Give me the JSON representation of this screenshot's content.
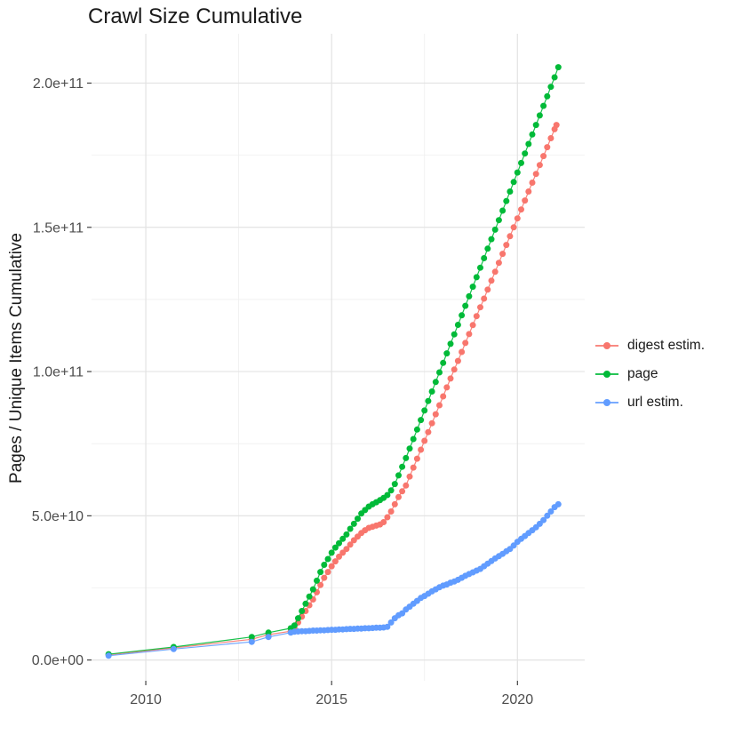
{
  "chart_data": {
    "type": "line",
    "title": "Crawl Size Cumulative",
    "xlabel": "",
    "ylabel": "Pages / Unique Items Cumulative",
    "grid": true,
    "grid_major_color": "#e3e3e3",
    "grid_minor_color": "#efefef",
    "tick_color": "#333333",
    "axis_text_color": "#4d4d4d",
    "legend_position": "right",
    "xlim": [
      2008.54,
      2021.81
    ],
    "ylim": [
      -7200000000.0,
      217100000000.0
    ],
    "x_ticks": {
      "major": [
        2010,
        2015,
        2020
      ],
      "minor": [
        2012.5,
        2017.5
      ],
      "labels": [
        "2010",
        "2015",
        "2020"
      ]
    },
    "y_ticks": {
      "major": [
        0,
        50000000000.0,
        100000000000.0,
        150000000000.0,
        200000000000.0
      ],
      "minor": [
        25000000000.0,
        75000000000.0,
        125000000000.0,
        175000000000.0
      ],
      "labels": [
        "0.0e+00",
        "5.0e+10",
        "1.0e+11",
        "1.5e+11",
        "2.0e+11"
      ]
    },
    "series": [
      {
        "name": "digest estim.",
        "color": "#F8766D",
        "points": [
          [
            2009.0,
            1800000000.0
          ],
          [
            2010.75,
            4200000000.0
          ],
          [
            2012.85,
            7200000000.0
          ],
          [
            2013.3,
            8800000000.0
          ],
          [
            2013.9,
            10000000000.0
          ],
          [
            2014.0,
            11000000000.0
          ],
          [
            2014.1,
            13000000000.0
          ],
          [
            2014.2,
            15000000000.0
          ],
          [
            2014.3,
            17000000000.0
          ],
          [
            2014.4,
            19000000000.0
          ],
          [
            2014.5,
            21000000000.0
          ],
          [
            2014.6,
            23500000000.0
          ],
          [
            2014.7,
            26000000000.0
          ],
          [
            2014.8,
            28500000000.0
          ],
          [
            2014.9,
            30500000000.0
          ],
          [
            2015.0,
            32500000000.0
          ],
          [
            2015.1,
            34200000000.0
          ],
          [
            2015.2,
            35800000000.0
          ],
          [
            2015.3,
            37200000000.0
          ],
          [
            2015.4,
            38500000000.0
          ],
          [
            2015.5,
            40000000000.0
          ],
          [
            2015.6,
            41500000000.0
          ],
          [
            2015.7,
            42800000000.0
          ],
          [
            2015.8,
            44000000000.0
          ],
          [
            2015.9,
            45000000000.0
          ],
          [
            2016.0,
            45800000000.0
          ],
          [
            2016.1,
            46200000000.0
          ],
          [
            2016.2,
            46600000000.0
          ],
          [
            2016.3,
            47000000000.0
          ],
          [
            2016.4,
            47800000000.0
          ],
          [
            2016.5,
            49500000000.0
          ],
          [
            2016.6,
            51500000000.0
          ],
          [
            2016.7,
            54000000000.0
          ],
          [
            2016.8,
            56500000000.0
          ],
          [
            2016.9,
            58500000000.0
          ],
          [
            2017.0,
            60500000000.0
          ],
          [
            2017.1,
            63600000000.0
          ],
          [
            2017.2,
            66700000000.0
          ],
          [
            2017.3,
            69800000000.0
          ],
          [
            2017.4,
            72900000000.0
          ],
          [
            2017.5,
            76000000000.0
          ],
          [
            2017.6,
            79000000000.0
          ],
          [
            2017.7,
            82100000000.0
          ],
          [
            2017.8,
            85200000000.0
          ],
          [
            2017.9,
            88300000000.0
          ],
          [
            2018.0,
            91400000000.0
          ],
          [
            2018.1,
            94500000000.0
          ],
          [
            2018.2,
            97600000000.0
          ],
          [
            2018.3,
            100700000000.0
          ],
          [
            2018.4,
            103700000000.0
          ],
          [
            2018.5,
            106800000000.0
          ],
          [
            2018.6,
            109900000000.0
          ],
          [
            2018.7,
            113000000000.0
          ],
          [
            2018.8,
            116100000000.0
          ],
          [
            2018.9,
            119200000000.0
          ],
          [
            2019.0,
            122300000000.0
          ],
          [
            2019.1,
            125300000000.0
          ],
          [
            2019.2,
            128400000000.0
          ],
          [
            2019.3,
            131500000000.0
          ],
          [
            2019.4,
            134600000000.0
          ],
          [
            2019.5,
            137700000000.0
          ],
          [
            2019.6,
            140800000000.0
          ],
          [
            2019.7,
            143900000000.0
          ],
          [
            2019.8,
            146900000000.0
          ],
          [
            2019.9,
            150000000000.0
          ],
          [
            2020.0,
            153100000000.0
          ],
          [
            2020.1,
            156200000000.0
          ],
          [
            2020.2,
            159300000000.0
          ],
          [
            2020.3,
            162400000000.0
          ],
          [
            2020.4,
            165500000000.0
          ],
          [
            2020.5,
            168500000000.0
          ],
          [
            2020.6,
            171600000000.0
          ],
          [
            2020.7,
            174700000000.0
          ],
          [
            2020.8,
            177800000000.0
          ],
          [
            2020.9,
            180900000000.0
          ],
          [
            2021.0,
            184000000000.0
          ],
          [
            2021.05,
            185500000000.0
          ]
        ]
      },
      {
        "name": "page",
        "color": "#00BA38",
        "points": [
          [
            2009.0,
            2000000000.0
          ],
          [
            2010.75,
            4500000000.0
          ],
          [
            2012.85,
            8000000000.0
          ],
          [
            2013.3,
            9500000000.0
          ],
          [
            2013.9,
            11000000000.0
          ],
          [
            2014.0,
            12000000000.0
          ],
          [
            2014.1,
            14500000000.0
          ],
          [
            2014.2,
            17000000000.0
          ],
          [
            2014.3,
            19500000000.0
          ],
          [
            2014.4,
            22000000000.0
          ],
          [
            2014.5,
            24500000000.0
          ],
          [
            2014.6,
            27500000000.0
          ],
          [
            2014.7,
            30500000000.0
          ],
          [
            2014.8,
            33000000000.0
          ],
          [
            2014.9,
            35000000000.0
          ],
          [
            2015.0,
            37200000000.0
          ],
          [
            2015.1,
            39000000000.0
          ],
          [
            2015.2,
            40500000000.0
          ],
          [
            2015.3,
            42000000000.0
          ],
          [
            2015.4,
            43500000000.0
          ],
          [
            2015.5,
            45500000000.0
          ],
          [
            2015.6,
            47200000000.0
          ],
          [
            2015.7,
            49000000000.0
          ],
          [
            2015.8,
            50800000000.0
          ],
          [
            2015.9,
            52000000000.0
          ],
          [
            2016.0,
            53200000000.0
          ],
          [
            2016.1,
            54000000000.0
          ],
          [
            2016.2,
            54700000000.0
          ],
          [
            2016.3,
            55400000000.0
          ],
          [
            2016.4,
            56200000000.0
          ],
          [
            2016.5,
            57200000000.0
          ],
          [
            2016.6,
            58800000000.0
          ],
          [
            2016.7,
            61000000000.0
          ],
          [
            2016.8,
            64000000000.0
          ],
          [
            2016.9,
            67000000000.0
          ],
          [
            2017.0,
            70000000000.0
          ],
          [
            2017.1,
            73300000000.0
          ],
          [
            2017.2,
            76600000000.0
          ],
          [
            2017.3,
            79900000000.0
          ],
          [
            2017.4,
            83200000000.0
          ],
          [
            2017.5,
            86500000000.0
          ],
          [
            2017.6,
            89800000000.0
          ],
          [
            2017.7,
            93100000000.0
          ],
          [
            2017.8,
            96400000000.0
          ],
          [
            2017.9,
            99700000000.0
          ],
          [
            2018.0,
            103000000000.0
          ],
          [
            2018.1,
            106300000000.0
          ],
          [
            2018.2,
            109600000000.0
          ],
          [
            2018.3,
            112900000000.0
          ],
          [
            2018.4,
            116200000000.0
          ],
          [
            2018.5,
            119500000000.0
          ],
          [
            2018.6,
            122800000000.0
          ],
          [
            2018.7,
            126100000000.0
          ],
          [
            2018.8,
            129400000000.0
          ],
          [
            2018.9,
            132700000000.0
          ],
          [
            2019.0,
            136000000000.0
          ],
          [
            2019.1,
            139300000000.0
          ],
          [
            2019.2,
            142600000000.0
          ],
          [
            2019.3,
            145900000000.0
          ],
          [
            2019.4,
            149200000000.0
          ],
          [
            2019.5,
            152500000000.0
          ],
          [
            2019.6,
            155800000000.0
          ],
          [
            2019.7,
            159100000000.0
          ],
          [
            2019.8,
            162400000000.0
          ],
          [
            2019.9,
            165700000000.0
          ],
          [
            2020.0,
            169000000000.0
          ],
          [
            2020.1,
            172300000000.0
          ],
          [
            2020.2,
            175600000000.0
          ],
          [
            2020.3,
            178900000000.0
          ],
          [
            2020.4,
            182200000000.0
          ],
          [
            2020.5,
            185500000000.0
          ],
          [
            2020.6,
            188800000000.0
          ],
          [
            2020.7,
            192100000000.0
          ],
          [
            2020.8,
            195400000000.0
          ],
          [
            2020.9,
            198700000000.0
          ],
          [
            2021.0,
            202000000000.0
          ],
          [
            2021.1,
            205500000000.0
          ]
        ]
      },
      {
        "name": "url estim.",
        "color": "#619CFF",
        "points": [
          [
            2009.0,
            1500000000.0
          ],
          [
            2010.75,
            3800000000.0
          ],
          [
            2012.85,
            6300000000.0
          ],
          [
            2013.3,
            8000000000.0
          ],
          [
            2013.9,
            9500000000.0
          ],
          [
            2014.0,
            9800000000.0
          ],
          [
            2014.1,
            9900000000.0
          ],
          [
            2014.2,
            10000000000.0
          ],
          [
            2014.3,
            10000000000.0
          ],
          [
            2014.4,
            10100000000.0
          ],
          [
            2014.5,
            10200000000.0
          ],
          [
            2014.6,
            10200000000.0
          ],
          [
            2014.7,
            10300000000.0
          ],
          [
            2014.8,
            10300000000.0
          ],
          [
            2014.9,
            10400000000.0
          ],
          [
            2015.0,
            10500000000.0
          ],
          [
            2015.1,
            10500000000.0
          ],
          [
            2015.2,
            10600000000.0
          ],
          [
            2015.3,
            10600000000.0
          ],
          [
            2015.4,
            10700000000.0
          ],
          [
            2015.5,
            10800000000.0
          ],
          [
            2015.6,
            10800000000.0
          ],
          [
            2015.7,
            10900000000.0
          ],
          [
            2015.8,
            10900000000.0
          ],
          [
            2015.9,
            11000000000.0
          ],
          [
            2016.0,
            11000000000.0
          ],
          [
            2016.1,
            11100000000.0
          ],
          [
            2016.2,
            11200000000.0
          ],
          [
            2016.3,
            11200000000.0
          ],
          [
            2016.4,
            11300000000.0
          ],
          [
            2016.5,
            11500000000.0
          ],
          [
            2016.6,
            13000000000.0
          ],
          [
            2016.7,
            14500000000.0
          ],
          [
            2016.8,
            15500000000.0
          ],
          [
            2016.9,
            16200000000.0
          ],
          [
            2017.0,
            17500000000.0
          ],
          [
            2017.1,
            18500000000.0
          ],
          [
            2017.2,
            19500000000.0
          ],
          [
            2017.3,
            20500000000.0
          ],
          [
            2017.4,
            21500000000.0
          ],
          [
            2017.5,
            22200000000.0
          ],
          [
            2017.6,
            23000000000.0
          ],
          [
            2017.7,
            23800000000.0
          ],
          [
            2017.8,
            24500000000.0
          ],
          [
            2017.9,
            25200000000.0
          ],
          [
            2018.0,
            25800000000.0
          ],
          [
            2018.1,
            26200000000.0
          ],
          [
            2018.2,
            26800000000.0
          ],
          [
            2018.3,
            27200000000.0
          ],
          [
            2018.4,
            27800000000.0
          ],
          [
            2018.5,
            28500000000.0
          ],
          [
            2018.6,
            29200000000.0
          ],
          [
            2018.7,
            29800000000.0
          ],
          [
            2018.8,
            30400000000.0
          ],
          [
            2018.9,
            31000000000.0
          ],
          [
            2019.0,
            31600000000.0
          ],
          [
            2019.1,
            32500000000.0
          ],
          [
            2019.2,
            33400000000.0
          ],
          [
            2019.3,
            34300000000.0
          ],
          [
            2019.4,
            35200000000.0
          ],
          [
            2019.5,
            36000000000.0
          ],
          [
            2019.6,
            36800000000.0
          ],
          [
            2019.7,
            37700000000.0
          ],
          [
            2019.8,
            38500000000.0
          ],
          [
            2019.9,
            39700000000.0
          ],
          [
            2020.0,
            41000000000.0
          ],
          [
            2020.1,
            42000000000.0
          ],
          [
            2020.2,
            43000000000.0
          ],
          [
            2020.3,
            44000000000.0
          ],
          [
            2020.4,
            45000000000.0
          ],
          [
            2020.5,
            46000000000.0
          ],
          [
            2020.6,
            47200000000.0
          ],
          [
            2020.7,
            48500000000.0
          ],
          [
            2020.8,
            50000000000.0
          ],
          [
            2020.9,
            51500000000.0
          ],
          [
            2021.0,
            53000000000.0
          ],
          [
            2021.1,
            54000000000.0
          ]
        ]
      }
    ]
  }
}
